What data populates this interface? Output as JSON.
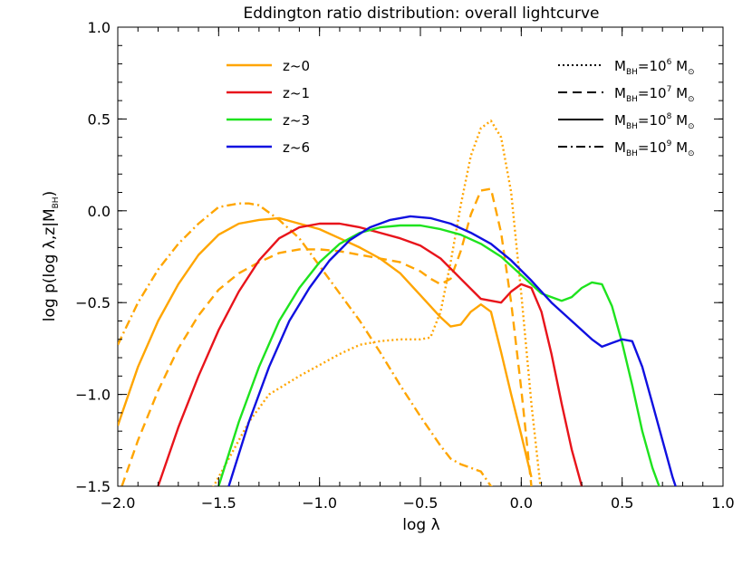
{
  "chart_data": {
    "type": "line",
    "title": "Eddington ratio distribution: overall lightcurve",
    "xlabel": "log λ",
    "ylabel": "log p(log λ,z|M",
    "ylabel_sub": "BH",
    "ylabel_close": ")",
    "xlim": [
      -2.0,
      1.0
    ],
    "ylim": [
      -1.5,
      1.0
    ],
    "xticks": [
      -2.0,
      -1.5,
      -1.0,
      -0.5,
      0.0,
      0.5,
      1.0
    ],
    "yticks": [
      -1.5,
      -1.0,
      -0.5,
      0.0,
      0.5,
      1.0
    ],
    "xtick_labels": [
      "−2.0",
      "−1.5",
      "−1.0",
      "−0.5",
      "0.0",
      "0.5",
      "1.0"
    ],
    "ytick_labels": [
      "−1.5",
      "−1.0",
      "−0.5",
      "0.0",
      "0.5",
      "1.0"
    ],
    "grid": false,
    "legend_redshift": [
      {
        "label": "z~0",
        "color": "#FFA500"
      },
      {
        "label": "z~1",
        "color": "#E8141B"
      },
      {
        "label": "z~3",
        "color": "#1EE31E"
      },
      {
        "label": "z~6",
        "color": "#1010E0"
      }
    ],
    "legend_mass": [
      {
        "prefix": "M",
        "sub": "BH",
        "mid": "=10",
        "sup": "6",
        "suffix": " M",
        "sun_sub": "⊙",
        "dash": "dotted"
      },
      {
        "prefix": "M",
        "sub": "BH",
        "mid": "=10",
        "sup": "7",
        "suffix": " M",
        "sun_sub": "⊙",
        "dash": "dashed"
      },
      {
        "prefix": "M",
        "sub": "BH",
        "mid": "=10",
        "sup": "8",
        "suffix": " M",
        "sun_sub": "⊙",
        "dash": "solid"
      },
      {
        "prefix": "M",
        "sub": "BH",
        "mid": "=10",
        "sup": "9",
        "suffix": " M",
        "sun_sub": "⊙",
        "dash": "dashdot"
      }
    ],
    "series": [
      {
        "z": "z~0",
        "mass": "10^8",
        "color": "#FFA500",
        "dash": "solid",
        "x": [
          -2.0,
          -1.9,
          -1.8,
          -1.7,
          -1.6,
          -1.5,
          -1.4,
          -1.3,
          -1.2,
          -1.1,
          -1.0,
          -0.9,
          -0.8,
          -0.7,
          -0.6,
          -0.5,
          -0.4,
          -0.35,
          -0.3,
          -0.25,
          -0.2,
          -0.15,
          -0.1,
          -0.05,
          0.0,
          0.05
        ],
        "y": [
          -1.17,
          -0.85,
          -0.6,
          -0.4,
          -0.24,
          -0.13,
          -0.07,
          -0.05,
          -0.04,
          -0.07,
          -0.1,
          -0.15,
          -0.2,
          -0.26,
          -0.34,
          -0.46,
          -0.58,
          -0.63,
          -0.62,
          -0.55,
          -0.51,
          -0.55,
          -0.77,
          -1.0,
          -1.22,
          -1.45
        ]
      },
      {
        "z": "z~0",
        "mass": "10^7",
        "color": "#FFA500",
        "dash": "dashed",
        "x": [
          -1.98,
          -1.9,
          -1.8,
          -1.7,
          -1.6,
          -1.5,
          -1.4,
          -1.3,
          -1.2,
          -1.1,
          -1.0,
          -0.9,
          -0.8,
          -0.7,
          -0.6,
          -0.5,
          -0.45,
          -0.4,
          -0.35,
          -0.3,
          -0.25,
          -0.2,
          -0.15,
          -0.1,
          -0.05,
          0.0,
          0.05
        ],
        "y": [
          -1.5,
          -1.25,
          -0.98,
          -0.75,
          -0.57,
          -0.43,
          -0.34,
          -0.28,
          -0.23,
          -0.21,
          -0.21,
          -0.22,
          -0.24,
          -0.26,
          -0.28,
          -0.33,
          -0.37,
          -0.4,
          -0.37,
          -0.22,
          -0.02,
          0.11,
          0.12,
          -0.12,
          -0.5,
          -0.97,
          -1.5
        ]
      },
      {
        "z": "z~0",
        "mass": "10^6",
        "color": "#FFA500",
        "dash": "dotted",
        "x": [
          -1.55,
          -1.45,
          -1.35,
          -1.25,
          -1.1,
          -1.0,
          -0.9,
          -0.8,
          -0.7,
          -0.6,
          -0.5,
          -0.45,
          -0.4,
          -0.35,
          -0.3,
          -0.25,
          -0.2,
          -0.15,
          -0.1,
          -0.05,
          0.0,
          0.05,
          0.1
        ],
        "y": [
          -1.55,
          -1.35,
          -1.15,
          -1.0,
          -0.9,
          -0.84,
          -0.78,
          -0.73,
          -0.71,
          -0.7,
          -0.7,
          -0.69,
          -0.55,
          -0.28,
          0.03,
          0.3,
          0.45,
          0.49,
          0.4,
          0.1,
          -0.45,
          -1.05,
          -1.55
        ]
      },
      {
        "z": "z~0",
        "mass": "10^9",
        "color": "#FFA500",
        "dash": "dashdot",
        "x": [
          -2.0,
          -1.9,
          -1.8,
          -1.7,
          -1.6,
          -1.5,
          -1.45,
          -1.4,
          -1.35,
          -1.3,
          -1.2,
          -1.1,
          -1.0,
          -0.9,
          -0.8,
          -0.7,
          -0.6,
          -0.5,
          -0.4,
          -0.35,
          -0.3,
          -0.25,
          -0.2,
          -0.15,
          -0.1
        ],
        "y": [
          -0.73,
          -0.5,
          -0.32,
          -0.18,
          -0.07,
          0.02,
          0.03,
          0.04,
          0.04,
          0.03,
          -0.05,
          -0.15,
          -0.3,
          -0.45,
          -0.6,
          -0.77,
          -0.95,
          -1.12,
          -1.28,
          -1.35,
          -1.38,
          -1.4,
          -1.42,
          -1.5,
          -1.55
        ]
      },
      {
        "z": "z~1",
        "mass": "10^8",
        "color": "#E8141B",
        "dash": "solid",
        "x": [
          -1.8,
          -1.7,
          -1.6,
          -1.5,
          -1.4,
          -1.3,
          -1.2,
          -1.1,
          -1.0,
          -0.9,
          -0.8,
          -0.7,
          -0.6,
          -0.5,
          -0.4,
          -0.3,
          -0.2,
          -0.1,
          -0.05,
          0.0,
          0.05,
          0.1,
          0.15,
          0.2,
          0.25,
          0.3,
          0.35
        ],
        "y": [
          -1.5,
          -1.18,
          -0.9,
          -0.65,
          -0.44,
          -0.27,
          -0.15,
          -0.09,
          -0.07,
          -0.07,
          -0.09,
          -0.12,
          -0.15,
          -0.19,
          -0.26,
          -0.37,
          -0.48,
          -0.5,
          -0.44,
          -0.4,
          -0.42,
          -0.55,
          -0.78,
          -1.05,
          -1.3,
          -1.5,
          -1.55
        ]
      },
      {
        "z": "z~3",
        "mass": "10^8",
        "color": "#1EE31E",
        "dash": "solid",
        "x": [
          -1.5,
          -1.4,
          -1.3,
          -1.2,
          -1.1,
          -1.0,
          -0.9,
          -0.8,
          -0.7,
          -0.6,
          -0.5,
          -0.4,
          -0.3,
          -0.2,
          -0.1,
          0.0,
          0.1,
          0.2,
          0.25,
          0.3,
          0.35,
          0.4,
          0.45,
          0.5,
          0.55,
          0.6,
          0.65,
          0.7
        ],
        "y": [
          -1.5,
          -1.15,
          -0.85,
          -0.6,
          -0.42,
          -0.28,
          -0.18,
          -0.12,
          -0.09,
          -0.08,
          -0.08,
          -0.1,
          -0.13,
          -0.18,
          -0.25,
          -0.35,
          -0.45,
          -0.49,
          -0.47,
          -0.42,
          -0.39,
          -0.4,
          -0.52,
          -0.72,
          -0.95,
          -1.2,
          -1.4,
          -1.55
        ]
      },
      {
        "z": "z~6",
        "mass": "10^8",
        "color": "#1010E0",
        "dash": "solid",
        "x": [
          -1.45,
          -1.35,
          -1.25,
          -1.15,
          -1.05,
          -0.95,
          -0.85,
          -0.75,
          -0.65,
          -0.55,
          -0.45,
          -0.35,
          -0.25,
          -0.15,
          -0.05,
          0.05,
          0.15,
          0.25,
          0.35,
          0.4,
          0.45,
          0.5,
          0.55,
          0.6,
          0.65,
          0.7,
          0.75,
          0.78
        ],
        "y": [
          -1.5,
          -1.15,
          -0.85,
          -0.6,
          -0.42,
          -0.27,
          -0.16,
          -0.09,
          -0.05,
          -0.03,
          -0.04,
          -0.07,
          -0.12,
          -0.18,
          -0.27,
          -0.38,
          -0.5,
          -0.6,
          -0.7,
          -0.74,
          -0.72,
          -0.7,
          -0.71,
          -0.85,
          -1.05,
          -1.25,
          -1.45,
          -1.55
        ]
      }
    ]
  }
}
